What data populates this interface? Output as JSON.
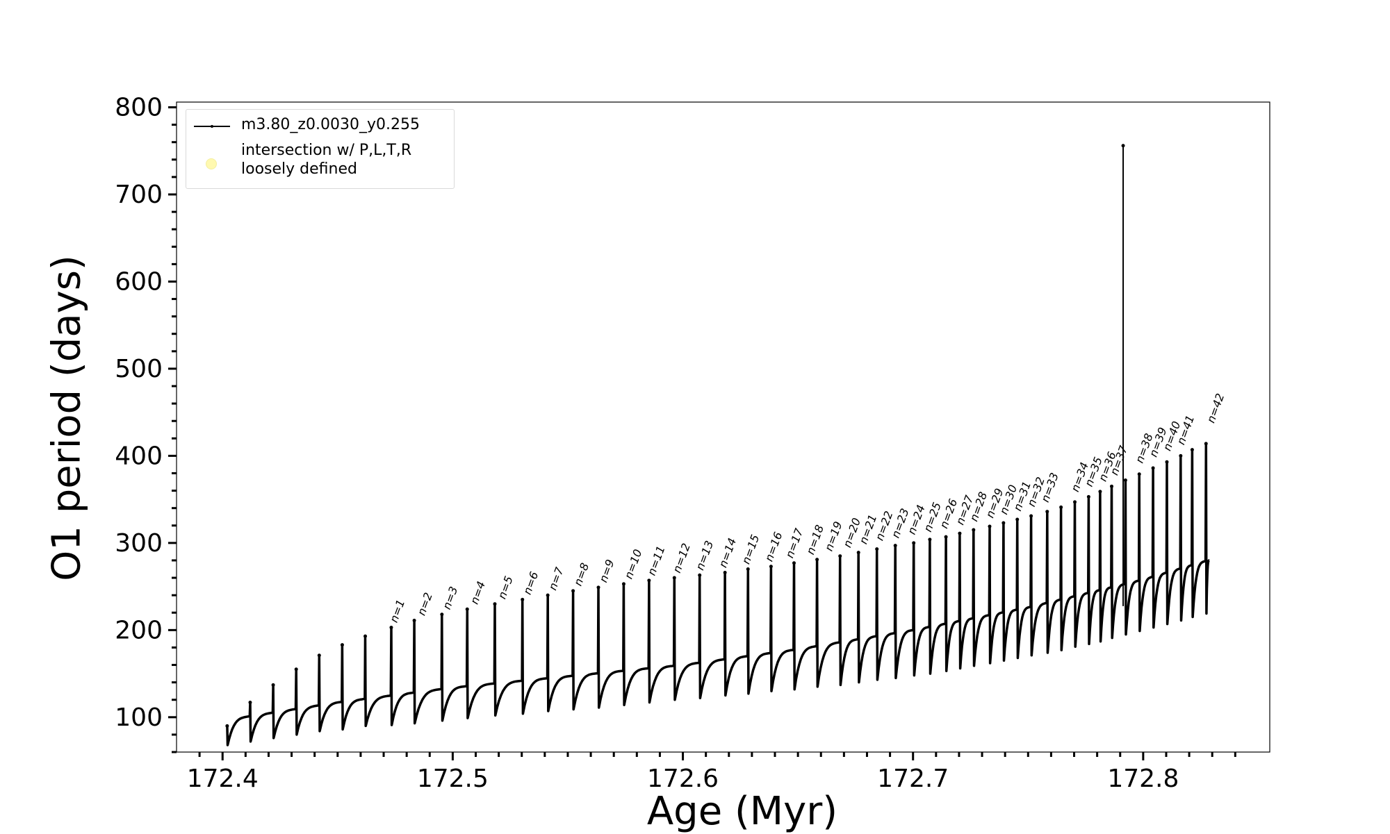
{
  "chart_data": {
    "type": "line",
    "xlabel": "Age (Myr)",
    "ylabel": "O1 period (days)",
    "xlim": [
      172.38,
      172.855
    ],
    "ylim": [
      60,
      806
    ],
    "xticks": [
      "172.4",
      "172.5",
      "172.6",
      "172.7",
      "172.8"
    ],
    "yticks": [
      "100",
      "200",
      "300",
      "400",
      "500",
      "600",
      "700",
      "800"
    ],
    "grid": false,
    "legend_position": "top-left",
    "series": [
      {
        "name": "m3.80_z0.0030_y0.255",
        "color": "#000000",
        "marker": "dot",
        "description_of_shape": "sawtooth: rising baseline with a spike at each thermal pulse",
        "baseline_x": [
          172.402,
          172.45,
          172.5,
          172.55,
          172.6,
          172.65,
          172.7,
          172.75,
          172.8,
          172.828
        ],
        "baseline_y": [
          97,
          117,
          134,
          147,
          160,
          178,
          200,
          226,
          258,
          280
        ],
        "pulse_x": [
          172.402,
          172.412,
          172.422,
          172.432,
          172.442,
          172.452,
          172.462,
          172.4733,
          172.4833,
          172.4953,
          172.5063,
          172.5183,
          172.5303,
          172.5413,
          172.5523,
          172.5633,
          172.5743,
          172.5853,
          172.5963,
          172.6073,
          172.6183,
          172.6283,
          172.6383,
          172.6483,
          172.6583,
          172.6683,
          172.6763,
          172.6843,
          172.6923,
          172.7003,
          172.7073,
          172.7143,
          172.7203,
          172.7263,
          172.7333,
          172.7393,
          172.7453,
          172.7513,
          172.7583,
          172.7643,
          172.7703,
          172.7763,
          172.7813,
          172.7863,
          172.7923,
          172.7983,
          172.8043,
          172.8103,
          172.8163,
          172.8213,
          172.8273
        ],
        "pulse_peak_y": [
          90,
          117,
          137,
          155,
          171,
          183,
          193,
          203,
          211,
          218,
          224,
          230,
          235,
          240,
          245,
          249,
          253,
          257,
          260,
          263,
          266,
          270,
          273,
          277,
          281,
          285,
          289,
          293,
          297,
          300,
          304,
          307,
          311,
          315,
          319,
          323,
          327,
          331,
          336,
          341,
          347,
          353,
          359,
          365,
          372,
          379,
          386,
          393,
          400,
          407,
          414
        ],
        "pulse_min_y": [
          68,
          72,
          76,
          80,
          84,
          86,
          90,
          91,
          93,
          96,
          99,
          102,
          104,
          107,
          109,
          111,
          114,
          117,
          120,
          122,
          125,
          127,
          130,
          132,
          135,
          137,
          140,
          143,
          145,
          148,
          150,
          153,
          156,
          159,
          162,
          165,
          168,
          171,
          174,
          177,
          181,
          184,
          187,
          191,
          195,
          199,
          203,
          207,
          211,
          215,
          219
        ],
        "outlier": {
          "x": 172.7913,
          "y": 756
        }
      },
      {
        "name": "intersection w/ P,L,T,R\nloosely defined",
        "color": "#fff9b0",
        "marker": "circle",
        "points": []
      }
    ],
    "annotations": [
      {
        "text": "n=1",
        "x": 172.4733,
        "y": 203
      },
      {
        "text": "n=2",
        "x": 172.4853,
        "y": 211
      },
      {
        "text": "n=3",
        "x": 172.4963,
        "y": 218
      },
      {
        "text": "n=4",
        "x": 172.5083,
        "y": 224
      },
      {
        "text": "n=5",
        "x": 172.5203,
        "y": 230
      },
      {
        "text": "n=6",
        "x": 172.5313,
        "y": 235
      },
      {
        "text": "n=7",
        "x": 172.5423,
        "y": 240
      },
      {
        "text": "n=8",
        "x": 172.5533,
        "y": 245
      },
      {
        "text": "n=9",
        "x": 172.5643,
        "y": 249
      },
      {
        "text": "n=10",
        "x": 172.5753,
        "y": 253
      },
      {
        "text": "n=11",
        "x": 172.5853,
        "y": 257
      },
      {
        "text": "n=12",
        "x": 172.5963,
        "y": 260
      },
      {
        "text": "n=13",
        "x": 172.6063,
        "y": 263
      },
      {
        "text": "n=14",
        "x": 172.6163,
        "y": 266
      },
      {
        "text": "n=15",
        "x": 172.6263,
        "y": 270
      },
      {
        "text": "n=16",
        "x": 172.6363,
        "y": 273
      },
      {
        "text": "n=17",
        "x": 172.6453,
        "y": 277
      },
      {
        "text": "n=18",
        "x": 172.6543,
        "y": 281
      },
      {
        "text": "n=19",
        "x": 172.6623,
        "y": 285
      },
      {
        "text": "n=20",
        "x": 172.6703,
        "y": 289
      },
      {
        "text": "n=21",
        "x": 172.6773,
        "y": 293
      },
      {
        "text": "n=22",
        "x": 172.6843,
        "y": 297
      },
      {
        "text": "n=23",
        "x": 172.6913,
        "y": 300
      },
      {
        "text": "n=24",
        "x": 172.6983,
        "y": 304
      },
      {
        "text": "n=25",
        "x": 172.7053,
        "y": 307
      },
      {
        "text": "n=26",
        "x": 172.7123,
        "y": 311
      },
      {
        "text": "n=27",
        "x": 172.7193,
        "y": 315
      },
      {
        "text": "n=28",
        "x": 172.7253,
        "y": 319
      },
      {
        "text": "n=29",
        "x": 172.7323,
        "y": 323
      },
      {
        "text": "n=30",
        "x": 172.7383,
        "y": 327
      },
      {
        "text": "n=31",
        "x": 172.7443,
        "y": 331
      },
      {
        "text": "n=32",
        "x": 172.7503,
        "y": 336
      },
      {
        "text": "n=33",
        "x": 172.7563,
        "y": 341
      },
      {
        "text": "n=34",
        "x": 172.7693,
        "y": 353
      },
      {
        "text": "n=35",
        "x": 172.7753,
        "y": 359
      },
      {
        "text": "n=36",
        "x": 172.7813,
        "y": 365
      },
      {
        "text": "n=37",
        "x": 172.7863,
        "y": 372
      },
      {
        "text": "n=38",
        "x": 172.7973,
        "y": 386
      },
      {
        "text": "n=39",
        "x": 172.8033,
        "y": 393
      },
      {
        "text": "n=40",
        "x": 172.8093,
        "y": 400
      },
      {
        "text": "n=41",
        "x": 172.8153,
        "y": 407
      },
      {
        "text": "n=42",
        "x": 172.8283,
        "y": 432
      }
    ]
  }
}
